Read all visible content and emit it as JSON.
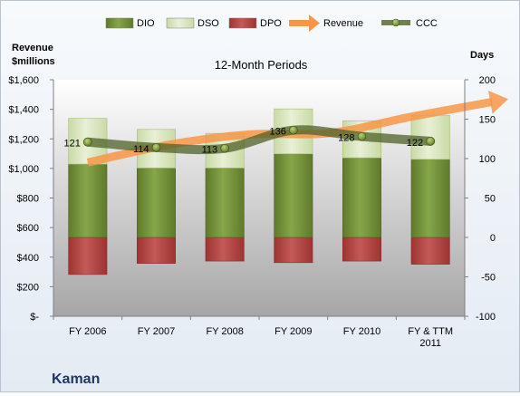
{
  "chart_data": {
    "type": "bar",
    "title": "12-Month Periods",
    "company": "Kaman",
    "categories": [
      "FY 2006",
      "FY 2007",
      "FY 2008",
      "FY 2009",
      "FY 2010",
      "FY & TTM 2011"
    ],
    "left_axis": {
      "label_lines": [
        "Revenue",
        "$millions"
      ],
      "ticks": [
        "$-",
        "$200",
        "$400",
        "$600",
        "$800",
        "$1,000",
        "$1,200",
        "$1,400",
        "$1,600"
      ],
      "ylim": [
        0,
        1600
      ]
    },
    "right_axis": {
      "label": "Days",
      "ticks": [
        "-100",
        "-50",
        "0",
        "50",
        "100",
        "150",
        "200"
      ],
      "ylim": [
        -100,
        200
      ]
    },
    "legend": {
      "placement": "top",
      "items": [
        {
          "key": "dio",
          "label": "DIO",
          "marker": "bar",
          "color": "#77933c"
        },
        {
          "key": "dso",
          "label": "DSO",
          "marker": "bar",
          "color": "#d7e4bd"
        },
        {
          "key": "dpo",
          "label": "DPO",
          "marker": "bar",
          "color": "#c0504d"
        },
        {
          "key": "revenue",
          "label": "Revenue",
          "marker": "arrow",
          "color": "#f79646"
        },
        {
          "key": "ccc",
          "label": "CCC",
          "marker": "line",
          "color": "#4f6228"
        }
      ]
    },
    "series": [
      {
        "key": "dio",
        "name": "DIO",
        "axis": "days",
        "values": [
          93,
          88,
          88,
          106,
          101,
          99
        ]
      },
      {
        "key": "dso",
        "name": "DSO",
        "axis": "days",
        "values": [
          58,
          49,
          44,
          57,
          47,
          56
        ]
      },
      {
        "key": "dpo",
        "name": "DPO",
        "axis": "days",
        "values": [
          -47,
          -33,
          -30,
          -32,
          -30,
          -34
        ]
      },
      {
        "key": "ccc",
        "name": "CCC",
        "axis": "days",
        "values": [
          121,
          114,
          113,
          136,
          128,
          122
        ],
        "labels": [
          "121",
          "114",
          "113",
          "136",
          "128",
          "122"
        ]
      }
    ],
    "revenue_trend": {
      "name": "Revenue",
      "axis": "revenue",
      "shape": "curved arrow",
      "x_start": 0,
      "x_end": 5.9,
      "values": [
        1040,
        1160,
        1230,
        1240,
        1350,
        1450
      ]
    },
    "grid": false,
    "colors": {
      "dio": "#77933c",
      "dso": "#d7e4bd",
      "dpo": "#c0504d",
      "revenue": "#f79646",
      "ccc": "#4f6228",
      "plot_top": "#ffffff",
      "plot_bottom": "#a6a6a6",
      "company": "#1f3864"
    }
  }
}
